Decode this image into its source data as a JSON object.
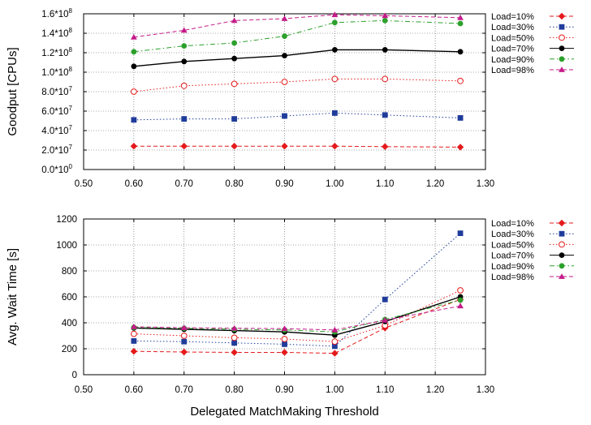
{
  "chart_data": [
    {
      "type": "line",
      "ylabel": "Goodput [CPUs]",
      "xlabel": "",
      "xlim": [
        0.5,
        1.3
      ],
      "ylim": [
        0,
        160000000
      ],
      "xticks": [
        "0.50",
        "0.60",
        "0.70",
        "0.80",
        "0.90",
        "1.00",
        "1.10",
        "1.20",
        "1.30"
      ],
      "yticks": [
        "0.0*10",
        "2.0*10",
        "4.0*10",
        "6.0*10",
        "8.0*10",
        "1.0*10",
        "1.2*10",
        "1.4*10",
        "1.6*10"
      ],
      "ytick_exponents": [
        "0",
        "7",
        "7",
        "7",
        "7",
        "8",
        "8",
        "8",
        "8"
      ],
      "grid": true,
      "legend_position": "right",
      "x": [
        0.6,
        0.7,
        0.8,
        0.9,
        1.0,
        1.1,
        1.25
      ],
      "series": [
        {
          "name": "Load=10%",
          "color": "#e41a1c",
          "marker": "diamond",
          "dash": "dashed",
          "values": [
            24000000,
            24000000,
            24000000,
            24000000,
            24000000,
            23500000,
            23000000
          ]
        },
        {
          "name": "Load=30%",
          "color": "#1f3c9b",
          "marker": "square",
          "dash": "dotted",
          "values": [
            51000000,
            52000000,
            52000000,
            55000000,
            58000000,
            56000000,
            53000000
          ]
        },
        {
          "name": "Load=50%",
          "color": "#e41a1c",
          "marker": "open-circle",
          "dash": "dotted",
          "values": [
            80000000,
            86000000,
            88000000,
            90000000,
            93000000,
            93000000,
            91000000
          ]
        },
        {
          "name": "Load=70%",
          "color": "#000000",
          "marker": "circle",
          "dash": "solid",
          "values": [
            106000000,
            111000000,
            114000000,
            117000000,
            123000000,
            123000000,
            121000000
          ]
        },
        {
          "name": "Load=90%",
          "color": "#2ca02c",
          "marker": "circle",
          "dash": "dashdot",
          "values": [
            121000000,
            127000000,
            130000000,
            137000000,
            151000000,
            153000000,
            150000000
          ]
        },
        {
          "name": "Load=98%",
          "color": "#c51b8a",
          "marker": "triangle",
          "dash": "dashed",
          "values": [
            136000000,
            143000000,
            153000000,
            155000000,
            159000000,
            158000000,
            156000000
          ]
        }
      ]
    },
    {
      "type": "line",
      "ylabel": "Avg. Wait Time [s]",
      "xlabel": "Delegated MatchMaking Threshold",
      "xlim": [
        0.5,
        1.3
      ],
      "ylim": [
        0,
        1200
      ],
      "xticks": [
        "0.50",
        "0.60",
        "0.70",
        "0.80",
        "0.90",
        "1.00",
        "1.10",
        "1.20",
        "1.30"
      ],
      "yticks": [
        "0",
        "200",
        "400",
        "600",
        "800",
        "1000",
        "1200"
      ],
      "grid": true,
      "legend_position": "right",
      "x": [
        0.6,
        0.7,
        0.8,
        0.9,
        1.0,
        1.1,
        1.25
      ],
      "series": [
        {
          "name": "Load=10%",
          "color": "#e41a1c",
          "marker": "diamond",
          "dash": "dashed",
          "values": [
            180,
            175,
            172,
            172,
            165,
            360,
            580
          ]
        },
        {
          "name": "Load=30%",
          "color": "#1f3c9b",
          "marker": "square",
          "dash": "dotted",
          "values": [
            260,
            255,
            245,
            235,
            220,
            580,
            1090
          ]
        },
        {
          "name": "Load=50%",
          "color": "#e41a1c",
          "marker": "open-circle",
          "dash": "dotted",
          "values": [
            315,
            300,
            285,
            275,
            255,
            380,
            650
          ]
        },
        {
          "name": "Load=70%",
          "color": "#000000",
          "marker": "circle",
          "dash": "solid",
          "values": [
            360,
            350,
            340,
            330,
            305,
            410,
            600
          ]
        },
        {
          "name": "Load=90%",
          "color": "#2ca02c",
          "marker": "circle",
          "dash": "dashdot",
          "values": [
            365,
            358,
            350,
            345,
            330,
            425,
            575
          ]
        },
        {
          "name": "Load=98%",
          "color": "#c51b8a",
          "marker": "triangle",
          "dash": "dashed",
          "values": [
            370,
            362,
            358,
            355,
            345,
            420,
            530
          ]
        }
      ]
    }
  ]
}
